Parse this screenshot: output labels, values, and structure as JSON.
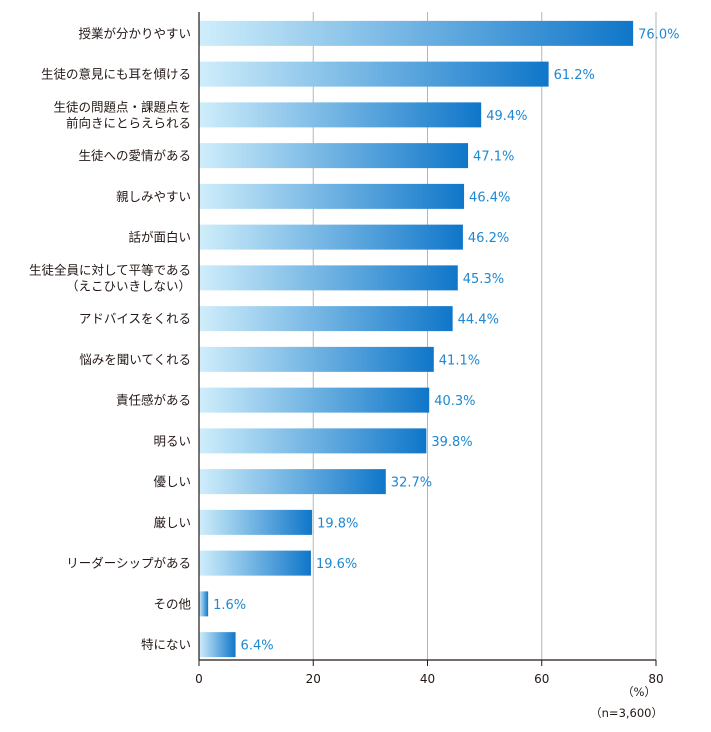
{
  "chart_data": {
    "type": "bar",
    "orientation": "horizontal",
    "categories": [
      [
        "授業が分かりやすい"
      ],
      [
        "生徒の意見にも耳を傾ける"
      ],
      [
        "生徒の問題点・課題点を",
        "前向きにとらえられる"
      ],
      [
        "生徒への愛情がある"
      ],
      [
        "親しみやすい"
      ],
      [
        "話が面白い"
      ],
      [
        "生徒全員に対して平等である",
        "（えこひいきしない）"
      ],
      [
        "アドバイスをくれる"
      ],
      [
        "悩みを聞いてくれる"
      ],
      [
        "責任感がある"
      ],
      [
        "明るい"
      ],
      [
        "優しい"
      ],
      [
        "厳しい"
      ],
      [
        "リーダーシップがある"
      ],
      [
        "その他"
      ],
      [
        "特にない"
      ]
    ],
    "values": [
      76.0,
      61.2,
      49.4,
      47.1,
      46.4,
      46.2,
      45.3,
      44.4,
      41.1,
      40.3,
      39.8,
      32.7,
      19.8,
      19.6,
      1.6,
      6.4
    ],
    "value_labels": [
      "76.0%",
      "61.2%",
      "49.4%",
      "47.1%",
      "46.4%",
      "46.2%",
      "45.3%",
      "44.4%",
      "41.1%",
      "40.3%",
      "39.8%",
      "32.7%",
      "19.8%",
      "19.6%",
      "1.6%",
      "6.4%"
    ],
    "xlim": [
      0,
      80
    ],
    "xticks": [
      0,
      20,
      40,
      60,
      80
    ],
    "unit": "（%）",
    "sample_note": "（n=3,600）",
    "grid": true,
    "bar_gradient": [
      "#cfeefb",
      "#0f76c9"
    ],
    "value_color": "#1e88d2",
    "axis_color": "#231815",
    "grid_color": "#b5b5b5"
  }
}
